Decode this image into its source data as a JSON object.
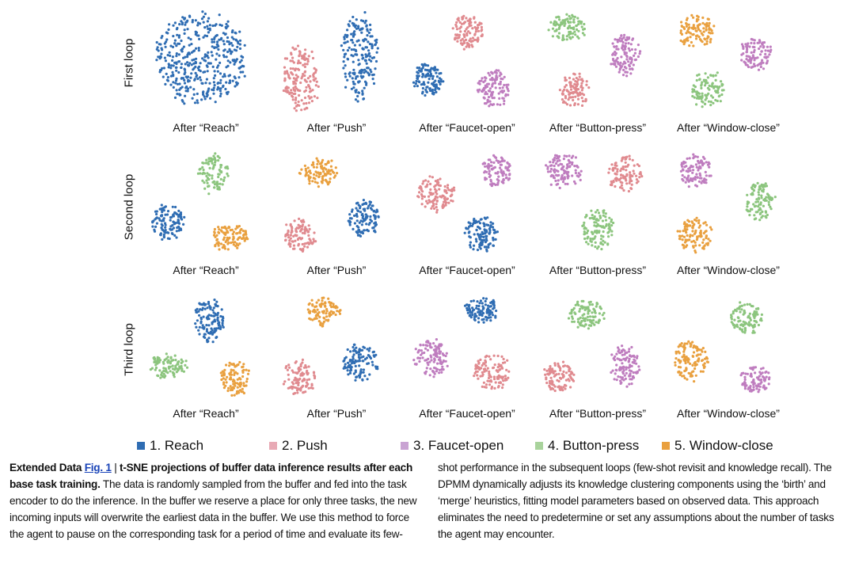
{
  "chart_data": {
    "type": "scatter",
    "title": "t-SNE projections of buffer data inference results",
    "tasks": [
      {
        "id": 1,
        "label": "1. Reach",
        "color": "#2f6db3"
      },
      {
        "id": 2,
        "label": "2. Push",
        "color": "#e08a8f"
      },
      {
        "id": 3,
        "label": "3. Faucet-open",
        "color": "#bf7dbf"
      },
      {
        "id": 4,
        "label": "4. Button-press",
        "color": "#8cc57e"
      },
      {
        "id": 5,
        "label": "5. Window-close",
        "color": "#e9a03f"
      }
    ],
    "legend_position": "bottom",
    "rows": [
      {
        "label": "First loop",
        "panels": [
          {
            "label": "After “Reach”",
            "clusters": [
              {
                "task": 1,
                "x": 45,
                "y": 48,
                "sx": 40,
                "sy": 44,
                "n": 420
              }
            ]
          },
          {
            "label": "After “Push”",
            "clusters": [
              {
                "task": 2,
                "x": 20,
                "y": 67,
                "sx": 16,
                "sy": 32,
                "n": 160
              },
              {
                "task": 1,
                "x": 70,
                "y": 46,
                "sx": 16,
                "sy": 42,
                "n": 190
              }
            ]
          },
          {
            "label": "After “Faucet-open”",
            "clusters": [
              {
                "task": 2,
                "x": 51,
                "y": 22,
                "sx": 14,
                "sy": 17,
                "n": 110
              },
              {
                "task": 1,
                "x": 17,
                "y": 67,
                "sx": 13,
                "sy": 16,
                "n": 110
              },
              {
                "task": 3,
                "x": 72,
                "y": 76,
                "sx": 14,
                "sy": 18,
                "n": 110
              }
            ]
          },
          {
            "label": "After “Button-press”",
            "clusters": [
              {
                "task": 4,
                "x": 25,
                "y": 19,
                "sx": 16,
                "sy": 13,
                "n": 100
              },
              {
                "task": 3,
                "x": 73,
                "y": 43,
                "sx": 13,
                "sy": 20,
                "n": 110
              },
              {
                "task": 2,
                "x": 31,
                "y": 78,
                "sx": 13,
                "sy": 17,
                "n": 100
              }
            ]
          },
          {
            "label": "After “Window-close”",
            "clusters": [
              {
                "task": 5,
                "x": 23,
                "y": 22,
                "sx": 16,
                "sy": 16,
                "n": 100
              },
              {
                "task": 3,
                "x": 73,
                "y": 43,
                "sx": 14,
                "sy": 15,
                "n": 100
              },
              {
                "task": 4,
                "x": 32,
                "y": 76,
                "sx": 15,
                "sy": 18,
                "n": 100
              }
            ]
          }
        ]
      },
      {
        "label": "Second loop",
        "panels": [
          {
            "label": "After “Reach”",
            "clusters": [
              {
                "task": 4,
                "x": 57,
                "y": 22,
                "sx": 13,
                "sy": 19,
                "n": 100
              },
              {
                "task": 1,
                "x": 18,
                "y": 67,
                "sx": 14,
                "sy": 17,
                "n": 110
              },
              {
                "task": 5,
                "x": 70,
                "y": 81,
                "sx": 16,
                "sy": 13,
                "n": 100
              }
            ]
          },
          {
            "label": "After “Push”",
            "clusters": [
              {
                "task": 5,
                "x": 35,
                "y": 20,
                "sx": 16,
                "sy": 14,
                "n": 100
              },
              {
                "task": 2,
                "x": 19,
                "y": 79,
                "sx": 14,
                "sy": 16,
                "n": 100
              },
              {
                "task": 1,
                "x": 73,
                "y": 64,
                "sx": 14,
                "sy": 18,
                "n": 110
              }
            ]
          },
          {
            "label": "After “Faucet-open”",
            "clusters": [
              {
                "task": 2,
                "x": 23,
                "y": 41,
                "sx": 17,
                "sy": 17,
                "n": 110
              },
              {
                "task": 3,
                "x": 75,
                "y": 19,
                "sx": 13,
                "sy": 15,
                "n": 90
              },
              {
                "task": 1,
                "x": 62,
                "y": 78,
                "sx": 14,
                "sy": 17,
                "n": 110
              }
            ]
          },
          {
            "label": "After “Button-press”",
            "clusters": [
              {
                "task": 3,
                "x": 22,
                "y": 19,
                "sx": 16,
                "sy": 17,
                "n": 110
              },
              {
                "task": 2,
                "x": 73,
                "y": 22,
                "sx": 15,
                "sy": 17,
                "n": 100
              },
              {
                "task": 4,
                "x": 50,
                "y": 74,
                "sx": 14,
                "sy": 20,
                "n": 110
              }
            ]
          },
          {
            "label": "After “Window-close”",
            "clusters": [
              {
                "task": 3,
                "x": 23,
                "y": 19,
                "sx": 14,
                "sy": 16,
                "n": 100
              },
              {
                "task": 4,
                "x": 77,
                "y": 48,
                "sx": 13,
                "sy": 18,
                "n": 100
              },
              {
                "task": 5,
                "x": 22,
                "y": 79,
                "sx": 15,
                "sy": 16,
                "n": 100
              }
            ]
          }
        ]
      },
      {
        "label": "Third loop",
        "panels": [
          {
            "label": "After “Reach”",
            "clusters": [
              {
                "task": 1,
                "x": 53,
                "y": 26,
                "sx": 13,
                "sy": 22,
                "n": 120
              },
              {
                "task": 4,
                "x": 18,
                "y": 68,
                "sx": 16,
                "sy": 12,
                "n": 100
              },
              {
                "task": 5,
                "x": 75,
                "y": 79,
                "sx": 13,
                "sy": 17,
                "n": 100
              }
            ]
          },
          {
            "label": "After “Push”",
            "clusters": [
              {
                "task": 5,
                "x": 39,
                "y": 17,
                "sx": 15,
                "sy": 14,
                "n": 100
              },
              {
                "task": 2,
                "x": 19,
                "y": 79,
                "sx": 14,
                "sy": 17,
                "n": 100
              },
              {
                "task": 1,
                "x": 70,
                "y": 65,
                "sx": 15,
                "sy": 17,
                "n": 110
              }
            ]
          },
          {
            "label": "After “Faucet-open”",
            "clusters": [
              {
                "task": 1,
                "x": 62,
                "y": 16,
                "sx": 14,
                "sy": 13,
                "n": 100
              },
              {
                "task": 3,
                "x": 20,
                "y": 61,
                "sx": 15,
                "sy": 18,
                "n": 110
              },
              {
                "task": 2,
                "x": 71,
                "y": 74,
                "sx": 16,
                "sy": 18,
                "n": 110
              }
            ]
          },
          {
            "label": "After “Button-press”",
            "clusters": [
              {
                "task": 4,
                "x": 41,
                "y": 20,
                "sx": 16,
                "sy": 14,
                "n": 100
              },
              {
                "task": 3,
                "x": 73,
                "y": 67,
                "sx": 13,
                "sy": 20,
                "n": 110
              },
              {
                "task": 2,
                "x": 18,
                "y": 79,
                "sx": 14,
                "sy": 15,
                "n": 100
              }
            ]
          },
          {
            "label": "After “Window-close”",
            "clusters": [
              {
                "task": 4,
                "x": 65,
                "y": 24,
                "sx": 14,
                "sy": 16,
                "n": 100
              },
              {
                "task": 5,
                "x": 18,
                "y": 64,
                "sx": 15,
                "sy": 19,
                "n": 120
              },
              {
                "task": 3,
                "x": 73,
                "y": 81,
                "sx": 13,
                "sy": 13,
                "n": 90
              }
            ]
          }
        ]
      }
    ]
  },
  "caption": {
    "prefix": "Extended Data ",
    "fig_link": "Fig. 1",
    "separator": " | ",
    "title": "t-SNE projections of buffer data inference results after each base task training.",
    "body": " The data is randomly sampled from the buffer and fed into the task encoder to do the inference. In the buffer we reserve a place for only three tasks, the new incoming inputs will overwrite the earliest data in the buffer. We use this method to force the agent to pause on the corresponding task for a period of time and evaluate its few-shot performance in the subsequent loops (few-shot revisit and knowledge recall). The DPMM dynamically adjusts its knowledge clustering components using the ‘birth’ and ‘merge’ heuristics, fitting model parameters based on observed data. This approach eliminates the need to predetermine or set any assumptions about the number of tasks the agent may encounter."
  }
}
